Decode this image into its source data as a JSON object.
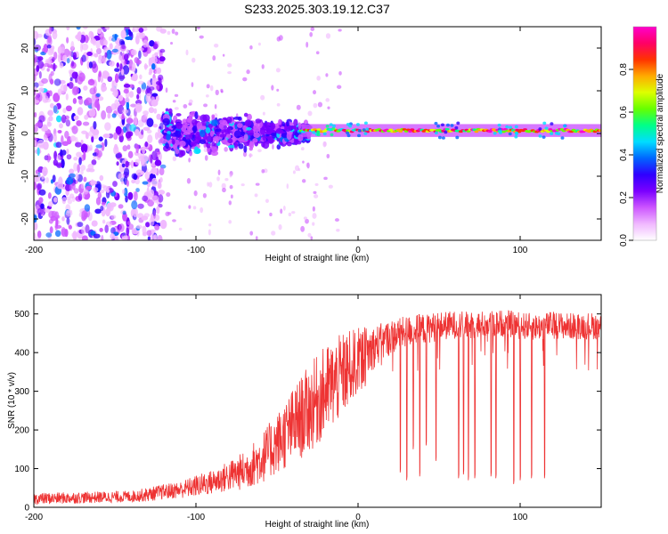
{
  "title": "S233.2025.303.19.12.C37",
  "chart_data": [
    {
      "type": "heatmap",
      "xlabel": "Height of straight line (km)",
      "ylabel": "Frequency (Hz)",
      "xlim": [
        -200,
        150
      ],
      "ylim": [
        -25,
        25
      ],
      "xticks": [
        -200,
        -100,
        0,
        100
      ],
      "xtick_labels": [
        "-200",
        "-100",
        "0",
        "100"
      ],
      "yticks": [
        -20,
        -10,
        0,
        10,
        20
      ],
      "ytick_labels": [
        "-20",
        "-10",
        "0",
        "10",
        "20"
      ],
      "colorbar": {
        "label": "Normalized spectral amplitude",
        "range": [
          0,
          1
        ],
        "ticks": [
          0,
          0.2,
          0.4,
          0.6,
          0.8
        ],
        "tick_labels": [
          "0.0",
          "0.2",
          "0.4",
          "0.6",
          "0.8"
        ],
        "colormap": [
          "#ffffff",
          "#f0b8ff",
          "#cc55ff",
          "#7a00ff",
          "#2f00ff",
          "#0066ff",
          "#00ddff",
          "#00ff88",
          "#66ff00",
          "#ddff00",
          "#ffaa00",
          "#ff3300",
          "#ff0066",
          "#ff00cc"
        ]
      },
      "regions": [
        {
          "name": "broadband noise",
          "x": [
            -200,
            -120
          ],
          "y": [
            -25,
            25
          ],
          "amplitude": 0.15
        },
        {
          "name": "scattered energy",
          "x": [
            -120,
            -30
          ],
          "y": [
            -9,
            8
          ],
          "amplitude": 0.25
        },
        {
          "name": "narrow tonal line",
          "x": [
            -35,
            150
          ],
          "y_center": 0.7,
          "amplitude": 0.9
        }
      ]
    },
    {
      "type": "line",
      "xlabel": "Height of straight line (km)",
      "ylabel": "SNR (10 * v/v)",
      "xlim": [
        -200,
        150
      ],
      "ylim": [
        0,
        550
      ],
      "xticks": [
        -200,
        -100,
        0,
        100
      ],
      "xtick_labels": [
        "-200",
        "-100",
        "0",
        "100"
      ],
      "yticks": [
        0,
        100,
        200,
        300,
        400,
        500
      ],
      "ytick_labels": [
        "0",
        "100",
        "200",
        "300",
        "400",
        "500"
      ],
      "series": [
        {
          "name": "SNR",
          "color": "#ee3333",
          "x": [
            -200,
            -180,
            -160,
            -140,
            -130,
            -120,
            -110,
            -100,
            -90,
            -80,
            -70,
            -60,
            -50,
            -40,
            -30,
            -20,
            -10,
            0,
            10,
            20,
            30,
            40,
            50,
            60,
            70,
            80,
            90,
            100,
            110,
            120,
            130,
            140,
            150
          ],
          "y": [
            22,
            24,
            26,
            28,
            33,
            40,
            45,
            55,
            65,
            80,
            95,
            125,
            165,
            210,
            255,
            300,
            340,
            380,
            415,
            440,
            455,
            462,
            468,
            472,
            470,
            474,
            476,
            470,
            466,
            472,
            468,
            470,
            468
          ],
          "noise": [
            15,
            15,
            15,
            15,
            18,
            20,
            22,
            28,
            32,
            40,
            50,
            65,
            80,
            100,
            115,
            120,
            110,
            85,
            55,
            45,
            40,
            40,
            38,
            36,
            36,
            35,
            35,
            35,
            35,
            35,
            35,
            35,
            35
          ],
          "dropouts": [
            [
              26,
              90
            ],
            [
              30,
              70
            ],
            [
              34,
              150
            ],
            [
              38,
              80
            ],
            [
              42,
              160
            ],
            [
              48,
              120
            ],
            [
              62,
              75
            ],
            [
              65,
              85
            ],
            [
              68,
              70
            ],
            [
              72,
              75
            ],
            [
              82,
              80
            ],
            [
              85,
              75
            ],
            [
              96,
              60
            ],
            [
              100,
              70
            ],
            [
              107,
              75
            ],
            [
              115,
              75
            ]
          ]
        }
      ]
    }
  ]
}
